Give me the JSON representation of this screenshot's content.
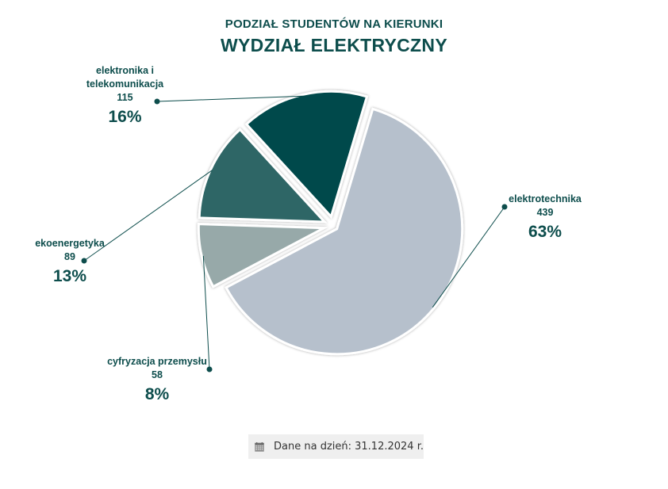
{
  "title_line1": "PODZIAŁ STUDENTÓW NA KIERUNKI",
  "title_line2": "WYDZIAŁ ELEKTRYCZNY",
  "footer": {
    "text": "Dane na dzień: 31.12.2024 r.",
    "icon": "calendar-icon"
  },
  "chart_data": {
    "type": "pie",
    "slices": [
      {
        "label": "elektrotechnika",
        "value": 439,
        "percent_label": "63%",
        "color": "#b6c0cc"
      },
      {
        "label": "cyfryzacja przemysłu",
        "value": 58,
        "percent_label": "8%",
        "color": "#97a9a9"
      },
      {
        "label": "ekoenergetyka",
        "value": 89,
        "percent_label": "13%",
        "color": "#2d6666"
      },
      {
        "label": "elektronika i telekomunikacja",
        "value": 115,
        "percent_label": "16%",
        "color": "#034a4b"
      }
    ],
    "label_color": "#0d4d4c",
    "leader_color": "#0d4d4c"
  }
}
